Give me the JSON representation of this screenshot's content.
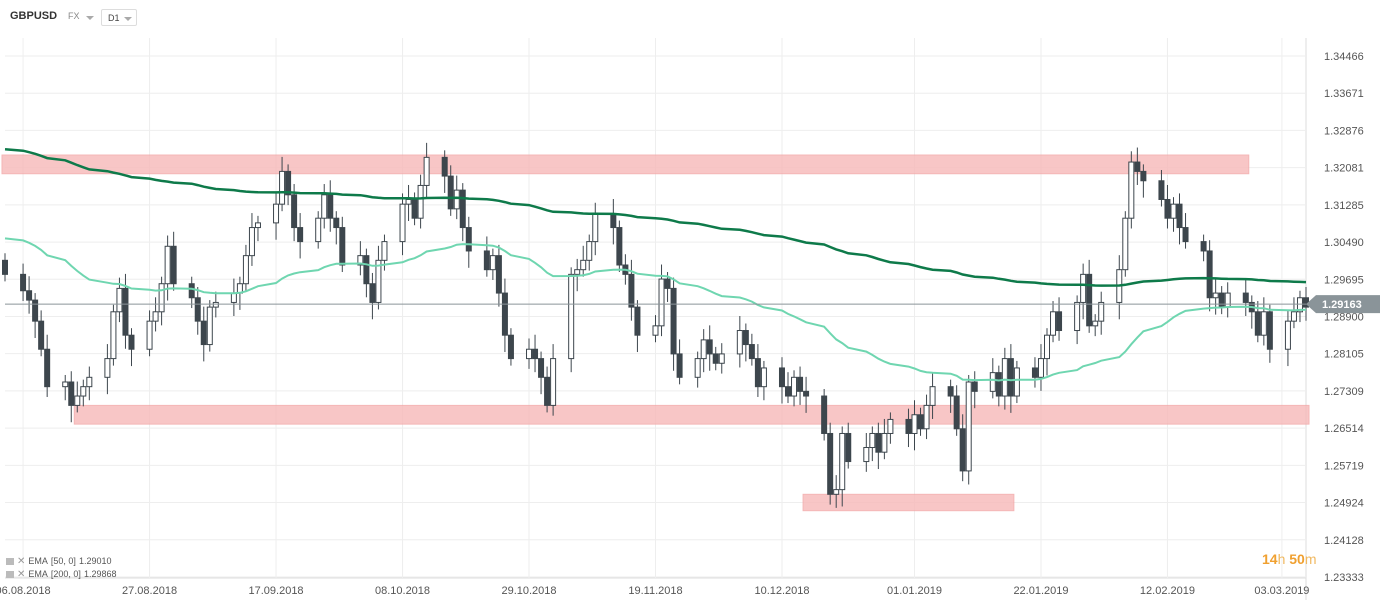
{
  "header": {
    "symbol": "GBPUSD",
    "market": "FX",
    "timeframe": "D1"
  },
  "indicators": [
    {
      "label": "EMA",
      "params": "[50, 0]",
      "value": "1.29010",
      "color": "#6fd6b0"
    },
    {
      "label": "EMA",
      "params": "[200, 0]",
      "value": "1.29868",
      "color": "#0e7a4a"
    }
  ],
  "timer": {
    "hours": "14",
    "hours_unit": "h",
    "minutes": "50",
    "minutes_unit": "m"
  },
  "colors": {
    "bull": "#ffffff",
    "bear": "#3d464d",
    "zone": "#f7b9b9",
    "grid": "#eeeeee",
    "price_label": "#8a9499"
  },
  "chart_data": {
    "type": "candlestick",
    "symbol": "GBPUSD",
    "current_price": 1.29163,
    "y_ticks": [
      "1.34466",
      "1.33671",
      "1.32876",
      "1.32081",
      "1.31285",
      "1.30490",
      "1.29695",
      "1.28900",
      "1.28105",
      "1.27309",
      "1.26514",
      "1.25719",
      "1.24924",
      "1.24128",
      "1.23333"
    ],
    "ylim": [
      1.23333,
      1.34466
    ],
    "x_ticks": [
      "06.08.2018",
      "27.08.2018",
      "17.09.2018",
      "08.10.2018",
      "29.10.2018",
      "19.11.2018",
      "10.12.2018",
      "01.01.2019",
      "22.01.2019",
      "12.02.2019",
      "03.03.2019"
    ],
    "xlim": [
      "2018-08-03",
      "2019-03-07"
    ],
    "candles_start": "2018-08-03",
    "closes": [
      1.298,
      1.2945,
      1.2925,
      1.288,
      1.282,
      1.274,
      1.275,
      1.27,
      1.272,
      1.274,
      1.276,
      1.28,
      1.29,
      1.295,
      1.285,
      1.282,
      1.288,
      1.29,
      1.296,
      1.304,
      1.296,
      1.293,
      1.288,
      1.283,
      1.291,
      1.292,
      1.294,
      1.296,
      1.302,
      1.308,
      1.309,
      1.313,
      1.32,
      1.315,
      1.308,
      1.305,
      1.31,
      1.315,
      1.31,
      1.308,
      1.3,
      1.302,
      1.296,
      1.292,
      1.301,
      1.305,
      1.313,
      1.314,
      1.31,
      1.317,
      1.323,
      1.319,
      1.312,
      1.316,
      1.308,
      1.303,
      1.299,
      1.302,
      1.294,
      1.285,
      1.28,
      1.282,
      1.28,
      1.276,
      1.27,
      1.28,
      1.298,
      1.299,
      1.301,
      1.305,
      1.311,
      1.308,
      1.3,
      1.298,
      1.291,
      1.285,
      1.287,
      1.297,
      1.295,
      1.281,
      1.276,
      1.28,
      1.284,
      1.281,
      1.279,
      1.281,
      1.286,
      1.283,
      1.28,
      1.274,
      1.278,
      1.274,
      1.272,
      1.276,
      1.273,
      1.272,
      1.264,
      1.251,
      1.252,
      1.264,
      1.258,
      1.261,
      1.264,
      1.26,
      1.264,
      1.267,
      1.264,
      1.268,
      1.265,
      1.27,
      1.274,
      1.272,
      1.265,
      1.256,
      1.275,
      1.273,
      1.277,
      1.272,
      1.28,
      1.272,
      1.278,
      1.276,
      1.28,
      1.285,
      1.29,
      1.286,
      1.292,
      1.298,
      1.287,
      1.288,
      1.292,
      1.299,
      1.31,
      1.322,
      1.32,
      1.318,
      1.314,
      1.31,
      1.313,
      1.308,
      1.305,
      1.303,
      1.293,
      1.294,
      1.291,
      1.294,
      1.292,
      1.29,
      1.285,
      1.29,
      1.282,
      1.288,
      1.29,
      1.293,
      1.291
    ]
  }
}
